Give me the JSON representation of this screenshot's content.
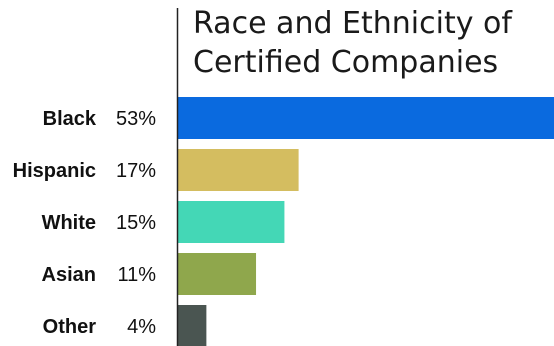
{
  "chart_data": {
    "type": "bar",
    "orientation": "horizontal",
    "title_lines": [
      "Race and Ethnicity of",
      "Certified Companies"
    ],
    "categories": [
      "Black",
      "Hispanic",
      "White",
      "Asian",
      "Other"
    ],
    "values": [
      53,
      17,
      15,
      11,
      4
    ],
    "value_labels": [
      "53%",
      "17%",
      "15%",
      "11%",
      "4%"
    ],
    "colors": [
      "#0a6adf",
      "#d4bd60",
      "#44d7b6",
      "#8fa74c",
      "#4a5551"
    ],
    "axis_line_color": "#222222",
    "grid": false,
    "legend": "none",
    "xlim": [
      0,
      53
    ]
  }
}
